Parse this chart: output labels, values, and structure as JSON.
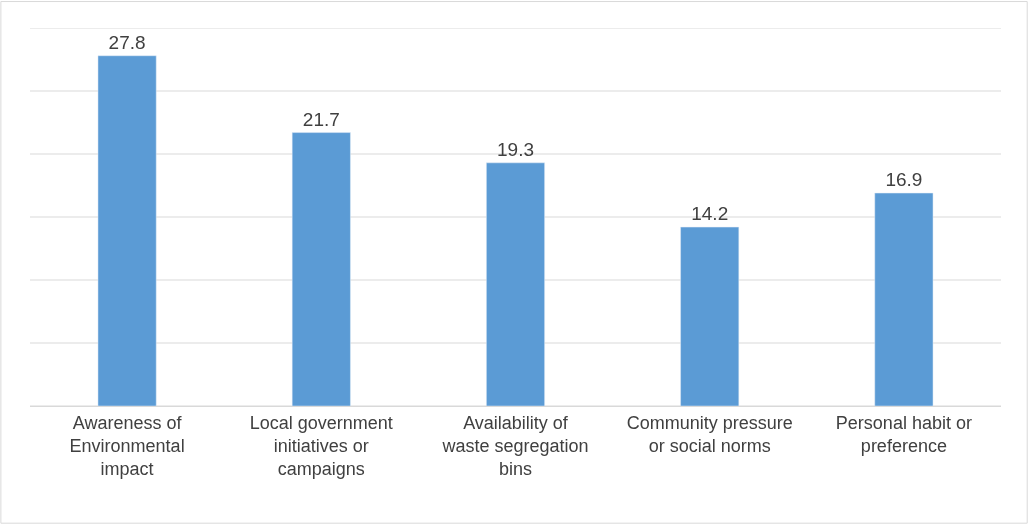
{
  "chart_data": {
    "type": "bar",
    "categories": [
      "Awareness of Environmental impact",
      "Local government initiatives or campaigns",
      "Availability of waste segregation bins",
      "Community pressure or social norms",
      "Personal habit or preference"
    ],
    "values": [
      27.8,
      21.7,
      19.3,
      14.2,
      16.9
    ],
    "color": "#5b9bd5",
    "ylim": [
      0,
      30
    ],
    "yticks": [
      {
        "value": 0,
        "label": null
      },
      {
        "value": 5,
        "label": null
      },
      {
        "value": 10,
        "label": null
      },
      {
        "value": 15,
        "label": null
      },
      {
        "value": 20,
        "label": null
      },
      {
        "value": 25,
        "label": null
      },
      {
        "value": 30,
        "label": null
      }
    ],
    "tick_labels": "x",
    "grid": "y",
    "data_labels": true
  }
}
